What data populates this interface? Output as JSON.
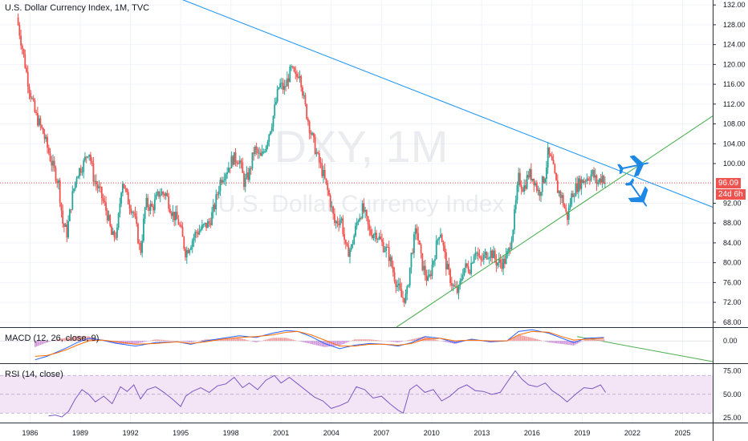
{
  "header": {
    "title": "U.S. Dollar Currency Index, 1M, TVC"
  },
  "watermark": {
    "symbol": "DXY, 1M",
    "name": "U.S. Dollar Currency Index"
  },
  "price_badges": {
    "last_price": "96.09",
    "countdown": "24d 6h"
  },
  "colors": {
    "up": "#26a69a",
    "down": "#ef5350",
    "trendline": "#2196f3",
    "support_line": "#4caf50",
    "macd_line": "#2962ff",
    "signal_line": "#ff6d00",
    "rsi_line": "#7e57c2",
    "rsi_band": "#f3e5f5",
    "last_price_line": "#ef5350",
    "arrow_icon": "#1e88e5"
  },
  "icons": [
    "plane-up-icon",
    "plane-down-icon"
  ],
  "chart_data": [
    {
      "type": "candlestick",
      "title": "U.S. Dollar Currency Index, 1M, TVC",
      "x_ticks": [
        "1986",
        "1989",
        "1992",
        "1995",
        "1998",
        "2001",
        "2004",
        "2007",
        "2010",
        "2013",
        "2016",
        "2019",
        "2022",
        "2025"
      ],
      "y_ticks": [
        "132.00",
        "128.00",
        "124.00",
        "120.00",
        "116.00",
        "112.00",
        "108.00",
        "104.00",
        "100.00",
        "96.00",
        "92.00",
        "88.00",
        "84.00",
        "80.00",
        "76.00",
        "72.00",
        "68.00"
      ],
      "ylim": [
        67,
        133
      ],
      "xlim": [
        1984.2,
        2026.8
      ],
      "last_price": 96.09,
      "path": [
        [
          1985.2,
          129.5
        ],
        [
          1985.5,
          124
        ],
        [
          1985.9,
          116
        ],
        [
          1986.3,
          110
        ],
        [
          1986.8,
          106
        ],
        [
          1987.3,
          100
        ],
        [
          1987.7,
          96
        ],
        [
          1987.95,
          88
        ],
        [
          1988.2,
          86
        ],
        [
          1988.5,
          93
        ],
        [
          1988.8,
          98
        ],
        [
          1989.2,
          100
        ],
        [
          1989.5,
          103
        ],
        [
          1989.8,
          97
        ],
        [
          1990.2,
          94
        ],
        [
          1990.6,
          90
        ],
        [
          1990.9,
          85
        ],
        [
          1991.2,
          86
        ],
        [
          1991.5,
          97
        ],
        [
          1991.8,
          93
        ],
        [
          1992.2,
          90
        ],
        [
          1992.6,
          82
        ],
        [
          1992.9,
          92
        ],
        [
          1993.3,
          91
        ],
        [
          1993.7,
          94
        ],
        [
          1994.1,
          94
        ],
        [
          1994.5,
          90
        ],
        [
          1994.9,
          88
        ],
        [
          1995.3,
          82
        ],
        [
          1995.6,
          84
        ],
        [
          1995.9,
          86
        ],
        [
          1996.3,
          87
        ],
        [
          1996.7,
          88
        ],
        [
          1997.0,
          91
        ],
        [
          1997.4,
          97
        ],
        [
          1997.8,
          99
        ],
        [
          1998.1,
          101
        ],
        [
          1998.5,
          101
        ],
        [
          1998.8,
          96
        ],
        [
          1999.1,
          98
        ],
        [
          1999.4,
          103
        ],
        [
          1999.8,
          101
        ],
        [
          2000.1,
          104
        ],
        [
          2000.5,
          109
        ],
        [
          2000.9,
          116
        ],
        [
          2001.2,
          115
        ],
        [
          2001.6,
          119
        ],
        [
          2001.9,
          117
        ],
        [
          2002.1,
          119
        ],
        [
          2002.4,
          112
        ],
        [
          2002.8,
          106
        ],
        [
          2003.2,
          101
        ],
        [
          2003.5,
          98
        ],
        [
          2003.9,
          93
        ],
        [
          2004.2,
          88
        ],
        [
          2004.6,
          89
        ],
        [
          2004.9,
          82
        ],
        [
          2005.2,
          83
        ],
        [
          2005.6,
          89
        ],
        [
          2005.9,
          91
        ],
        [
          2006.3,
          86
        ],
        [
          2006.7,
          86
        ],
        [
          2007.0,
          84
        ],
        [
          2007.4,
          82
        ],
        [
          2007.8,
          77
        ],
        [
          2008.2,
          73
        ],
        [
          2008.5,
          73
        ],
        [
          2008.8,
          82
        ],
        [
          2009.1,
          87
        ],
        [
          2009.4,
          80
        ],
        [
          2009.8,
          76
        ],
        [
          2010.2,
          82
        ],
        [
          2010.5,
          87
        ],
        [
          2010.9,
          79
        ],
        [
          2011.3,
          75
        ],
        [
          2011.6,
          74
        ],
        [
          2011.9,
          79
        ],
        [
          2012.3,
          79
        ],
        [
          2012.6,
          83
        ],
        [
          2012.9,
          80
        ],
        [
          2013.3,
          82
        ],
        [
          2013.6,
          82
        ],
        [
          2013.9,
          80
        ],
        [
          2014.3,
          80
        ],
        [
          2014.6,
          82
        ],
        [
          2014.9,
          88
        ],
        [
          2015.2,
          97
        ],
        [
          2015.5,
          95
        ],
        [
          2015.8,
          98
        ],
        [
          2016.1,
          97
        ],
        [
          2016.4,
          94
        ],
        [
          2016.8,
          98
        ],
        [
          2016.95,
          102
        ],
        [
          2017.2,
          100
        ],
        [
          2017.5,
          95
        ],
        [
          2017.8,
          93
        ],
        [
          2018.1,
          89
        ],
        [
          2018.4,
          94
        ],
        [
          2018.8,
          96
        ],
        [
          2019.2,
          97
        ],
        [
          2019.6,
          98
        ],
        [
          2019.9,
          96
        ],
        [
          2020.2,
          97.5
        ],
        [
          2020.4,
          96.1
        ]
      ],
      "trendline": [
        [
          1994.4,
          134
        ],
        [
          2026.8,
          91.2
        ]
      ],
      "support_line": [
        [
          2007.9,
          67
        ],
        [
          2026.8,
          109.6
        ]
      ]
    },
    {
      "type": "line",
      "title": "MACD (12, 26, close, 9)",
      "y_ticks": [
        "0.00"
      ],
      "ylim": [
        -2.6,
        1.6
      ],
      "series": [
        {
          "name": "MACD",
          "x": [
            1986.3,
            1987.0,
            1987.6,
            1988.2,
            1988.8,
            1989.5,
            1990.3,
            1991.2,
            1992.3,
            1993.5,
            1994.8,
            1995.6,
            1996.5,
            1997.5,
            1998.5,
            1999.5,
            2000.5,
            2001.3,
            2002.0,
            2002.8,
            2003.6,
            2004.5,
            2005.4,
            2006.3,
            2007.2,
            2008.0,
            2008.8,
            2009.6,
            2010.5,
            2011.4,
            2012.4,
            2013.5,
            2014.5,
            2015.2,
            2016.0,
            2017.0,
            2017.8,
            2018.5,
            2019.2,
            2020.3
          ],
          "values": [
            -2.2,
            -1.8,
            -1.3,
            -0.8,
            -0.2,
            0.3,
            0.1,
            -0.3,
            -0.6,
            -0.2,
            -0.1,
            -0.4,
            0.0,
            0.3,
            0.6,
            0.4,
            0.9,
            1.2,
            1.1,
            0.5,
            -0.3,
            -0.9,
            -0.5,
            -0.3,
            -0.4,
            -0.6,
            -0.2,
            0.5,
            0.3,
            -0.2,
            0.2,
            -0.1,
            0.0,
            1.1,
            1.3,
            0.9,
            0.3,
            -0.2,
            0.3,
            0.4
          ]
        },
        {
          "name": "Signal",
          "x": [
            1986.3,
            1987.0,
            1987.6,
            1988.2,
            1988.8,
            1989.5,
            1990.3,
            1991.2,
            1992.3,
            1993.5,
            1994.8,
            1995.6,
            1996.5,
            1997.5,
            1998.5,
            1999.5,
            2000.5,
            2001.3,
            2002.0,
            2002.8,
            2003.6,
            2004.5,
            2005.4,
            2006.3,
            2007.2,
            2008.0,
            2008.8,
            2009.6,
            2010.5,
            2011.4,
            2012.4,
            2013.5,
            2014.5,
            2015.2,
            2016.0,
            2017.0,
            2017.8,
            2018.5,
            2019.2,
            2020.3
          ],
          "values": [
            -1.8,
            -1.7,
            -1.4,
            -1.0,
            -0.5,
            0.0,
            0.1,
            -0.1,
            -0.4,
            -0.3,
            -0.1,
            -0.3,
            -0.1,
            0.2,
            0.4,
            0.5,
            0.7,
            1.0,
            1.1,
            0.7,
            0.1,
            -0.6,
            -0.6,
            -0.4,
            -0.4,
            -0.5,
            -0.3,
            0.2,
            0.3,
            0.0,
            0.1,
            0.0,
            0.0,
            0.7,
            1.1,
            1.0,
            0.5,
            0.1,
            0.2,
            0.3
          ]
        }
      ]
    },
    {
      "type": "line",
      "title": "RSI (14, close)",
      "y_ticks": [
        "75.00",
        "50.00",
        "25.00"
      ],
      "ylim": [
        20,
        83
      ],
      "band": [
        30,
        70
      ],
      "series": [
        {
          "name": "RSI",
          "x": [
            1987.1,
            1987.5,
            1987.9,
            1988.3,
            1988.7,
            1989.1,
            1989.5,
            1989.9,
            1990.4,
            1990.9,
            1991.4,
            1991.8,
            1992.2,
            1992.6,
            1993.0,
            1993.5,
            1994.0,
            1994.5,
            1995.0,
            1995.3,
            1995.7,
            1996.2,
            1996.7,
            1997.2,
            1997.7,
            1998.2,
            1998.7,
            1999.1,
            1999.6,
            2000.1,
            2000.6,
            2001.0,
            2001.5,
            2002.0,
            2002.5,
            2003.0,
            2003.5,
            2004.0,
            2004.5,
            2005.0,
            2005.5,
            2006.0,
            2006.5,
            2007.0,
            2007.5,
            2008.0,
            2008.3,
            2008.7,
            2009.1,
            2009.6,
            2010.1,
            2010.6,
            2011.1,
            2011.6,
            2012.1,
            2012.6,
            2013.1,
            2013.6,
            2014.1,
            2014.6,
            2015.0,
            2015.4,
            2015.8,
            2016.3,
            2016.8,
            2017.2,
            2017.7,
            2018.1,
            2018.6,
            2019.1,
            2019.6,
            2020.1,
            2020.4
          ],
          "values": [
            27,
            28,
            26,
            32,
            45,
            55,
            50,
            42,
            48,
            40,
            58,
            53,
            60,
            45,
            55,
            58,
            52,
            45,
            37,
            48,
            53,
            57,
            52,
            59,
            61,
            68,
            57,
            62,
            55,
            65,
            70,
            62,
            68,
            61,
            54,
            47,
            43,
            35,
            38,
            42,
            58,
            55,
            46,
            48,
            40,
            33,
            30,
            55,
            60,
            52,
            55,
            43,
            48,
            56,
            60,
            54,
            53,
            50,
            52,
            65,
            75,
            66,
            60,
            58,
            62,
            54,
            48,
            42,
            50,
            57,
            56,
            60,
            52
          ]
        }
      ]
    }
  ]
}
